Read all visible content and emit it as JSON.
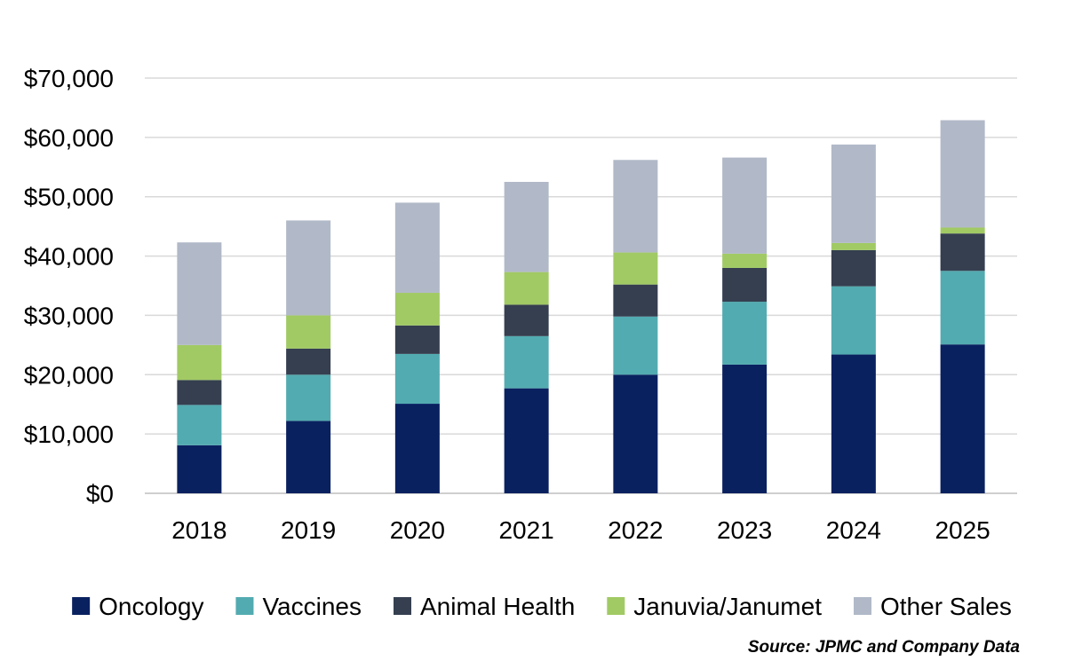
{
  "chart_data": {
    "type": "bar",
    "stacked": true,
    "title": "",
    "xlabel": "",
    "ylabel": "",
    "ylim": [
      0,
      70000
    ],
    "yticks": [
      0,
      10000,
      20000,
      30000,
      40000,
      50000,
      60000,
      70000
    ],
    "ytick_labels": [
      "$0",
      "$10,000",
      "$20,000",
      "$30,000",
      "$40,000",
      "$50,000",
      "$60,000",
      "$70,000"
    ],
    "grid": true,
    "legend_position": "bottom",
    "categories": [
      "2018",
      "2019",
      "2020",
      "2021",
      "2022",
      "2023",
      "2024",
      "2025"
    ],
    "series": [
      {
        "name": "Oncology",
        "color": "#0a2160",
        "values": [
          8100,
          12200,
          15100,
          17700,
          20000,
          21700,
          23400,
          25100
        ]
      },
      {
        "name": "Vaccines",
        "color": "#52abb0",
        "values": [
          6800,
          7800,
          8400,
          8800,
          9800,
          10600,
          11500,
          12400
        ]
      },
      {
        "name": "Animal Health",
        "color": "#353f50",
        "values": [
          4200,
          4400,
          4800,
          5300,
          5400,
          5700,
          6100,
          6300
        ]
      },
      {
        "name": "Januvia/Janumet",
        "color": "#a1ca64",
        "values": [
          5900,
          5600,
          5500,
          5500,
          5400,
          2400,
          1200,
          1000
        ]
      },
      {
        "name": "Other Sales",
        "color": "#b1b9c8",
        "values": [
          17300,
          16000,
          15200,
          15200,
          15600,
          16200,
          16600,
          18100
        ]
      }
    ]
  },
  "source_note": "Source: JPMC and Company Data"
}
